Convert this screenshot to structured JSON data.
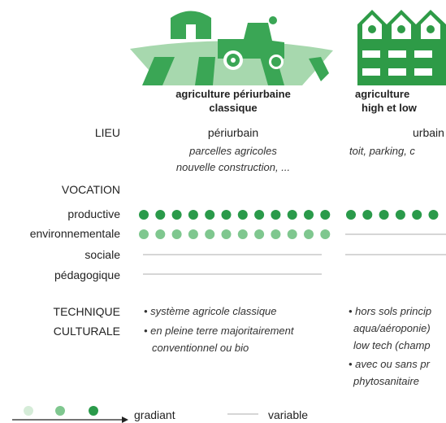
{
  "columns": [
    {
      "title": [
        "agriculture périurbaine",
        "classique"
      ],
      "lieu": "périurbain",
      "lieu_detail": [
        "parcelles agricoles",
        "nouvelle construction, ..."
      ],
      "technique": [
        "• système agricole classique",
        "• en pleine terre majoritairement",
        "conventionnel ou bio"
      ]
    },
    {
      "title": [
        "agriculture",
        "high et low"
      ],
      "lieu": "urbain",
      "lieu_detail": [
        "toit, parking, c"
      ],
      "technique": [
        "• hors sols princip",
        "aqua/aéroponie)",
        "low tech (champ",
        "• avec ou sans pr",
        "phytosanitaire"
      ]
    }
  ],
  "rows": {
    "lieu": "LIEU",
    "vocation": "VOCATION",
    "vocations": [
      "productive",
      "environnementale",
      "sociale",
      "pédagogique"
    ],
    "technique": [
      "TECHNIQUE",
      "CULTURALE"
    ]
  },
  "legend": {
    "gradient": "gradiant",
    "variable": "variable"
  }
}
